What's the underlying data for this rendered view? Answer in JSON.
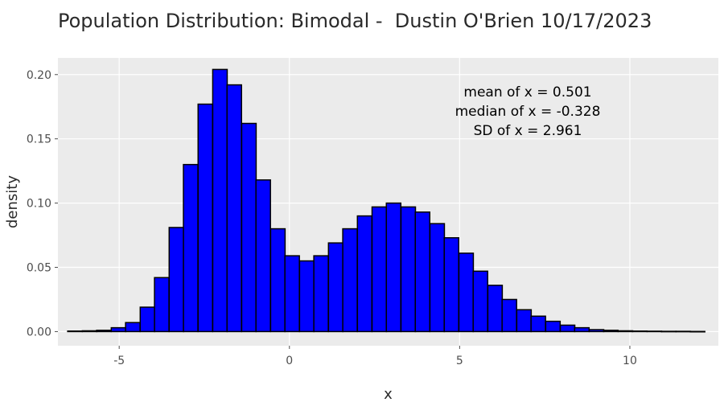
{
  "chart_data": {
    "type": "bar",
    "title": "Population Distribution: Bimodal -  Dustin O'Brien 10/17/2023",
    "xlabel": "x",
    "ylabel": "density",
    "xlim": [
      -6.8,
      12.6
    ],
    "ylim": [
      -0.011,
      0.213
    ],
    "bin_width": 0.4255,
    "x_ticks": [
      -5,
      0,
      5,
      10
    ],
    "y_ticks": [
      0.0,
      0.05,
      0.1,
      0.15,
      0.2
    ],
    "y_tick_labels": [
      "0.00",
      "0.05",
      "0.10",
      "0.15",
      "0.20"
    ],
    "bins": [
      {
        "x": -6.3,
        "density": 0.0004
      },
      {
        "x": -5.87,
        "density": 0.0006
      },
      {
        "x": -5.45,
        "density": 0.001
      },
      {
        "x": -5.02,
        "density": 0.003
      },
      {
        "x": -4.6,
        "density": 0.007
      },
      {
        "x": -4.17,
        "density": 0.019
      },
      {
        "x": -3.75,
        "density": 0.042
      },
      {
        "x": -3.32,
        "density": 0.081
      },
      {
        "x": -2.9,
        "density": 0.13
      },
      {
        "x": -2.47,
        "density": 0.177
      },
      {
        "x": -2.04,
        "density": 0.204
      },
      {
        "x": -1.62,
        "density": 0.192
      },
      {
        "x": -1.19,
        "density": 0.162
      },
      {
        "x": -0.77,
        "density": 0.118
      },
      {
        "x": -0.34,
        "density": 0.08
      },
      {
        "x": 0.08,
        "density": 0.059
      },
      {
        "x": 0.51,
        "density": 0.055
      },
      {
        "x": 0.93,
        "density": 0.059
      },
      {
        "x": 1.36,
        "density": 0.069
      },
      {
        "x": 1.78,
        "density": 0.08
      },
      {
        "x": 2.21,
        "density": 0.09
      },
      {
        "x": 2.64,
        "density": 0.097
      },
      {
        "x": 3.06,
        "density": 0.1
      },
      {
        "x": 3.49,
        "density": 0.097
      },
      {
        "x": 3.91,
        "density": 0.093
      },
      {
        "x": 4.34,
        "density": 0.084
      },
      {
        "x": 4.76,
        "density": 0.073
      },
      {
        "x": 5.19,
        "density": 0.061
      },
      {
        "x": 5.61,
        "density": 0.047
      },
      {
        "x": 6.04,
        "density": 0.036
      },
      {
        "x": 6.46,
        "density": 0.025
      },
      {
        "x": 6.89,
        "density": 0.017
      },
      {
        "x": 7.31,
        "density": 0.012
      },
      {
        "x": 7.74,
        "density": 0.008
      },
      {
        "x": 8.17,
        "density": 0.005
      },
      {
        "x": 8.59,
        "density": 0.003
      },
      {
        "x": 9.02,
        "density": 0.0015
      },
      {
        "x": 9.44,
        "density": 0.001
      },
      {
        "x": 9.87,
        "density": 0.0006
      },
      {
        "x": 10.29,
        "density": 0.0004
      },
      {
        "x": 10.72,
        "density": 0.0003
      },
      {
        "x": 11.14,
        "density": 0.0002
      },
      {
        "x": 11.57,
        "density": 0.0002
      },
      {
        "x": 11.99,
        "density": 0.0001
      }
    ],
    "annotations": [
      "mean of x = 0.501",
      "median of x = -0.328",
      "SD of x = 2.961"
    ],
    "annotation_position": {
      "x": 7.0,
      "y": 0.168
    },
    "colors": {
      "bar_fill": "#0000FF",
      "bar_outline": "#000000",
      "panel": "#EBEBEB",
      "grid": "#FFFFFF"
    },
    "grid": true,
    "legend": "none"
  }
}
